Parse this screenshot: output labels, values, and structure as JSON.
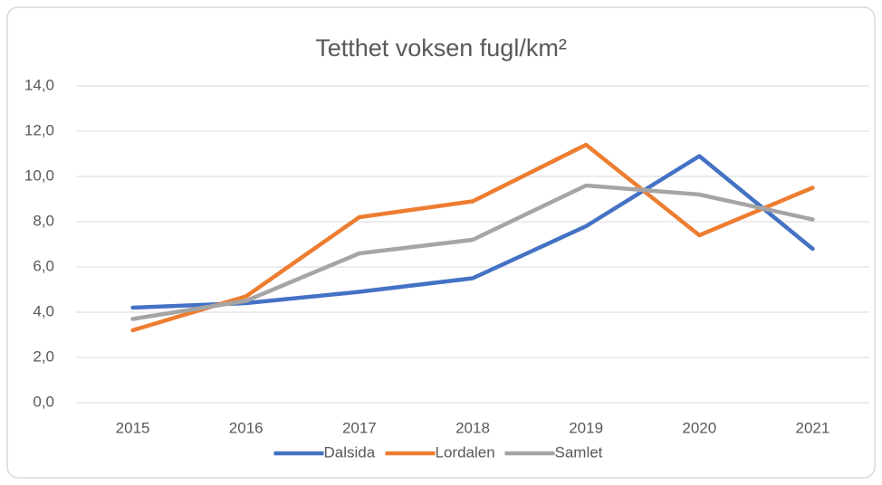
{
  "chart_data": {
    "type": "line",
    "title": "Tetthet voksen fugl/km²",
    "categories": [
      "2015",
      "2016",
      "2017",
      "2018",
      "2019",
      "2020",
      "2021"
    ],
    "series": [
      {
        "name": "Dalsida",
        "color": "#4472c4",
        "values": [
          4.2,
          4.4,
          4.9,
          5.5,
          7.8,
          10.9,
          6.8
        ]
      },
      {
        "name": "Lordalen",
        "color": "#ed7d31",
        "values": [
          3.2,
          4.7,
          8.2,
          8.9,
          11.4,
          7.4,
          9.5
        ]
      },
      {
        "name": "Samlet",
        "color": "#a5a5a5",
        "values": [
          3.7,
          4.5,
          6.6,
          7.2,
          9.6,
          9.2,
          8.1
        ]
      }
    ],
    "ylim": [
      0,
      14
    ],
    "yticks": [
      {
        "value": 0,
        "label": "0,0"
      },
      {
        "value": 2,
        "label": "2,0"
      },
      {
        "value": 4,
        "label": "4,0"
      },
      {
        "value": 6,
        "label": "6,0"
      },
      {
        "value": 8,
        "label": "8,0"
      },
      {
        "value": 10,
        "label": "10,0"
      },
      {
        "value": 12,
        "label": "12,0"
      },
      {
        "value": 14,
        "label": "14,0"
      }
    ],
    "grid": true,
    "legend": "bottom"
  }
}
